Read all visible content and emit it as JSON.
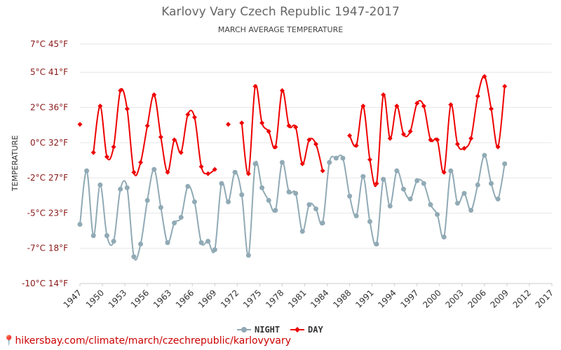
{
  "chart_data": {
    "type": "line",
    "title": "Karlovy Vary Czech Republic 1947-2017",
    "subtitle": "MARCH AVERAGE TEMPERATURE",
    "ylabel": "TEMPERATURE",
    "xlabel": "",
    "ylim": [
      -10,
      7
    ],
    "xlim": [
      1947,
      2017
    ],
    "y_ticks": [
      {
        "value": 7,
        "label": "7°C 45°F"
      },
      {
        "value": 5,
        "label": "5°C 41°F"
      },
      {
        "value": 2.5,
        "label": "2°C 36°F"
      },
      {
        "value": 0,
        "label": "0°C 32°F"
      },
      {
        "value": -2.5,
        "label": "-2°C 27°F"
      },
      {
        "value": -5,
        "label": "-5°C 23°F"
      },
      {
        "value": -7.5,
        "label": "-7°C 18°F"
      },
      {
        "value": -10,
        "label": "-10°C 14°F"
      }
    ],
    "x_ticks": [
      "1947",
      "1950",
      "1953",
      "1956",
      "1963",
      "1966",
      "1969",
      "1972",
      "1975",
      "1978",
      "1981",
      "1984",
      "1988",
      "1991",
      "1994",
      "1997",
      "2000",
      "2003",
      "2006",
      "2009",
      "2012",
      "2017"
    ],
    "grid": true,
    "legend_position": "bottom",
    "series": [
      {
        "name": "NIGHT",
        "color": "#90aab5",
        "marker": "circle",
        "points": [
          [
            1947,
            -5.8
          ],
          [
            1948,
            -2.0
          ],
          [
            1949,
            -6.6
          ],
          [
            1950,
            -3.0
          ],
          [
            1951,
            -6.6
          ],
          [
            1952,
            -7.0
          ],
          [
            1953,
            -3.3
          ],
          [
            1954,
            -3.2
          ],
          [
            1955,
            -8.1
          ],
          [
            1956,
            -7.2
          ],
          [
            1957,
            -4.1
          ],
          [
            1958,
            -1.9
          ],
          [
            1959,
            -4.6
          ],
          [
            1960,
            -7.1
          ],
          [
            1961,
            -5.7
          ],
          [
            1962,
            -5.3
          ],
          [
            1963,
            -3.1
          ],
          [
            1964,
            -4.2
          ],
          [
            1965,
            -7.1
          ],
          [
            1966,
            -7.0
          ],
          [
            1967,
            -7.6
          ],
          [
            1968,
            -2.9
          ],
          [
            1969,
            -4.2
          ],
          [
            1970,
            -2.1
          ],
          [
            1971,
            -3.7
          ],
          [
            1972,
            -8.0
          ],
          [
            1973,
            -1.5
          ],
          [
            1974,
            -3.2
          ],
          [
            1975,
            -4.1
          ],
          [
            1976,
            -4.8
          ],
          [
            1977,
            -1.4
          ],
          [
            1978,
            -3.5
          ],
          [
            1979,
            -3.6
          ],
          [
            1980,
            -6.3
          ],
          [
            1981,
            -4.4
          ],
          [
            1982,
            -4.7
          ],
          [
            1983,
            -5.7
          ],
          [
            1984,
            -1.4
          ],
          [
            1985,
            -1.1
          ],
          [
            1986,
            -1.1
          ],
          [
            1987,
            -3.8
          ],
          [
            1988,
            -5.2
          ],
          [
            1989,
            -2.4
          ],
          [
            1990,
            -5.6
          ],
          [
            1991,
            -7.2
          ],
          [
            1992,
            -2.6
          ],
          [
            1993,
            -4.5
          ],
          [
            1994,
            -2.0
          ],
          [
            1995,
            -3.3
          ],
          [
            1996,
            -4.0
          ],
          [
            1997,
            -2.7
          ],
          [
            1998,
            -2.9
          ],
          [
            1999,
            -4.4
          ],
          [
            2000,
            -5.1
          ],
          [
            2001,
            -6.7
          ],
          [
            2002,
            -2.0
          ],
          [
            2003,
            -4.3
          ],
          [
            2004,
            -3.6
          ],
          [
            2005,
            -4.8
          ],
          [
            2006,
            -3.0
          ],
          [
            2007,
            -0.9
          ],
          [
            2008,
            -2.9
          ],
          [
            2009,
            -4.0
          ],
          [
            2010,
            -1.5
          ]
        ]
      },
      {
        "name": "DAY",
        "color": "#ee0000",
        "marker": "diamond",
        "points": [
          [
            1947,
            1.3
          ],
          [
            1948,
            null
          ],
          [
            1949,
            -0.7
          ],
          [
            1950,
            2.6
          ],
          [
            1951,
            -1.0
          ],
          [
            1952,
            -0.3
          ],
          [
            1953,
            3.7
          ],
          [
            1954,
            2.4
          ],
          [
            1955,
            -2.1
          ],
          [
            1956,
            -1.4
          ],
          [
            1957,
            1.2
          ],
          [
            1958,
            3.4
          ],
          [
            1959,
            0.4
          ],
          [
            1960,
            -2.1
          ],
          [
            1961,
            0.2
          ],
          [
            1962,
            -0.7
          ],
          [
            1963,
            2.0
          ],
          [
            1964,
            1.8
          ],
          [
            1965,
            -1.7
          ],
          [
            1966,
            -2.2
          ],
          [
            1967,
            -1.9
          ],
          [
            1968,
            null
          ],
          [
            1969,
            1.3
          ],
          [
            1970,
            null
          ],
          [
            1971,
            1.4
          ],
          [
            1972,
            -2.2
          ],
          [
            1973,
            4.0
          ],
          [
            1974,
            1.4
          ],
          [
            1975,
            0.8
          ],
          [
            1976,
            -0.3
          ],
          [
            1977,
            3.7
          ],
          [
            1978,
            1.2
          ],
          [
            1979,
            1.1
          ],
          [
            1980,
            -1.5
          ],
          [
            1981,
            0.2
          ],
          [
            1982,
            -0.1
          ],
          [
            1983,
            -2.0
          ],
          [
            1984,
            null
          ],
          [
            1985,
            null
          ],
          [
            1986,
            null
          ],
          [
            1987,
            0.5
          ],
          [
            1988,
            -0.2
          ],
          [
            1989,
            2.6
          ],
          [
            1990,
            -1.2
          ],
          [
            1991,
            -2.9
          ],
          [
            1992,
            3.4
          ],
          [
            1993,
            0.3
          ],
          [
            1994,
            2.6
          ],
          [
            1995,
            0.6
          ],
          [
            1996,
            0.8
          ],
          [
            1997,
            2.8
          ],
          [
            1998,
            2.6
          ],
          [
            1999,
            0.2
          ],
          [
            2000,
            0.2
          ],
          [
            2001,
            -2.1
          ],
          [
            2002,
            2.7
          ],
          [
            2003,
            -0.1
          ],
          [
            2004,
            -0.4
          ],
          [
            2005,
            0.3
          ],
          [
            2006,
            3.3
          ],
          [
            2007,
            4.7
          ],
          [
            2008,
            2.4
          ],
          [
            2009,
            -0.3
          ],
          [
            2010,
            4.0
          ]
        ]
      }
    ]
  },
  "footer": {
    "pin": "📍",
    "url": "hikersbay.com/climate/march/czechrepublic/karlovyvary"
  }
}
